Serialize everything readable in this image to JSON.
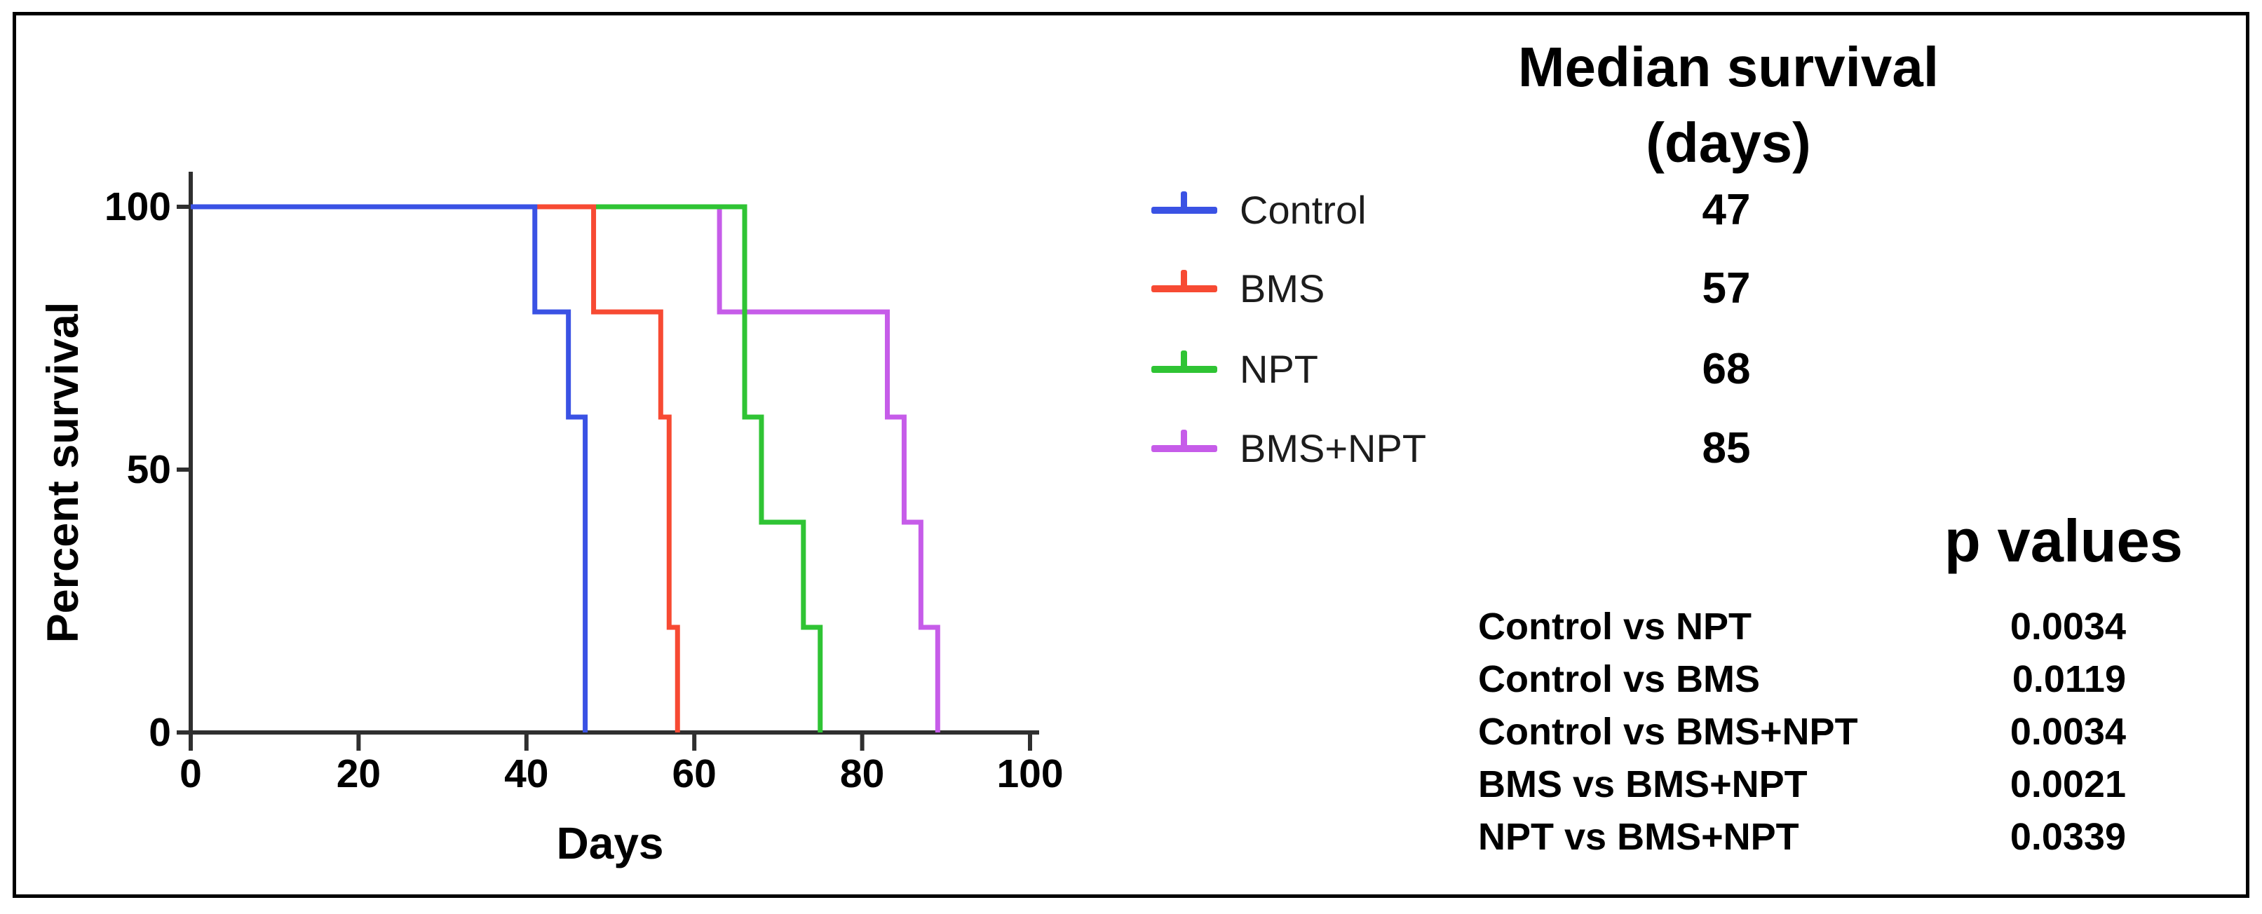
{
  "chart_data": {
    "type": "line",
    "subtype": "kaplan-meier-step",
    "xlabel": "Days",
    "ylabel": "Percent survival",
    "xlim": [
      0,
      100
    ],
    "ylim": [
      0,
      100
    ],
    "x_ticks": [
      0,
      20,
      40,
      60,
      80,
      100
    ],
    "y_ticks": [
      0,
      50,
      100
    ],
    "grid": false,
    "legend_position": "right-of-plot",
    "series": [
      {
        "name": "Control",
        "color": "#3a52e4",
        "median_days": "47",
        "steps": [
          {
            "day": 0,
            "pct": 100
          },
          {
            "day": 41,
            "pct": 80
          },
          {
            "day": 45,
            "pct": 60
          },
          {
            "day": 47,
            "pct": 0
          }
        ]
      },
      {
        "name": "BMS",
        "color": "#f74a33",
        "median_days": "57",
        "steps": [
          {
            "day": 0,
            "pct": 100
          },
          {
            "day": 48,
            "pct": 80
          },
          {
            "day": 56,
            "pct": 60
          },
          {
            "day": 57,
            "pct": 20
          },
          {
            "day": 58,
            "pct": 0
          }
        ]
      },
      {
        "name": "NPT",
        "color": "#2fc434",
        "median_days": "68",
        "steps": [
          {
            "day": 0,
            "pct": 100
          },
          {
            "day": 66,
            "pct": 60
          },
          {
            "day": 68,
            "pct": 40
          },
          {
            "day": 73,
            "pct": 20
          },
          {
            "day": 75,
            "pct": 0
          }
        ]
      },
      {
        "name": "BMS+NPT",
        "color": "#c65ce9",
        "median_days": "85",
        "steps": [
          {
            "day": 0,
            "pct": 100
          },
          {
            "day": 63,
            "pct": 80
          },
          {
            "day": 83,
            "pct": 60
          },
          {
            "day": 85,
            "pct": 40
          },
          {
            "day": 87,
            "pct": 20
          },
          {
            "day": 89,
            "pct": 0
          }
        ]
      }
    ]
  },
  "median_panel": {
    "title_line1": "Median survival",
    "title_line2": "(days)"
  },
  "p_values": {
    "title": "p values",
    "rows": [
      {
        "label": "Control vs NPT",
        "value": "0.0034"
      },
      {
        "label": "Control vs BMS",
        "value": "0.0119"
      },
      {
        "label": "Control vs BMS+NPT",
        "value": "0.0034"
      },
      {
        "label": "BMS vs BMS+NPT",
        "value": "0.0021"
      },
      {
        "label": "NPT vs BMS+NPT",
        "value": "0.0339"
      }
    ]
  }
}
